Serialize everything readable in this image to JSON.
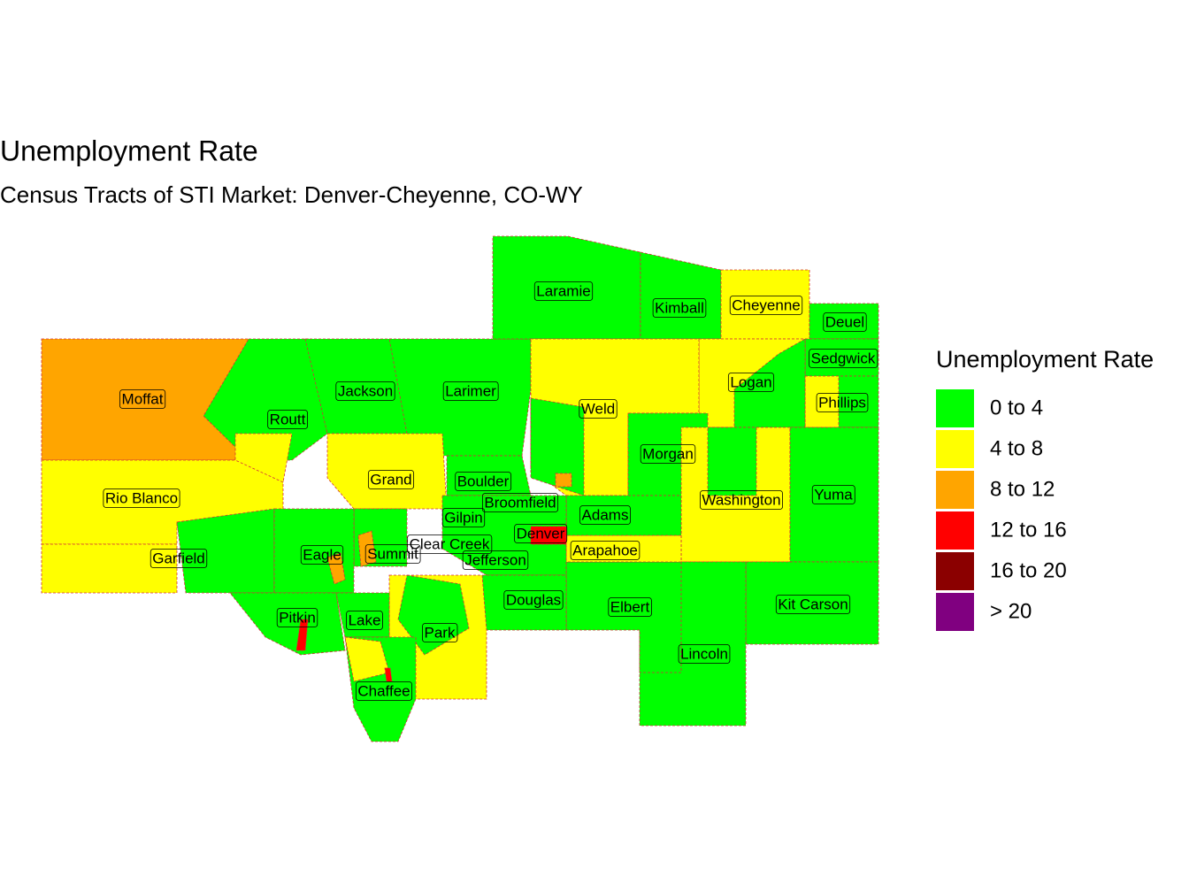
{
  "title": "Unemployment Rate",
  "subtitle": "Census Tracts of STI Market: Denver-Cheyenne, CO-WY",
  "legend": {
    "title": "Unemployment Rate",
    "items": [
      {
        "label": "0 to 4",
        "color": "#00ff00"
      },
      {
        "label": "4 to 8",
        "color": "#ffff00"
      },
      {
        "label": "8 to 12",
        "color": "#ffa500"
      },
      {
        "label": "12 to 16",
        "color": "#ff0000"
      },
      {
        "label": "16 to 20",
        "color": "#8b0000"
      },
      {
        "label": "> 20",
        "color": "#800080"
      }
    ]
  },
  "counties": [
    "Laramie",
    "Kimball",
    "Cheyenne",
    "Deuel",
    "Sedgwick",
    "Moffat",
    "Jackson",
    "Larimer",
    "Logan",
    "Phillips",
    "Weld",
    "Routt",
    "Morgan",
    "Grand",
    "Boulder",
    "Rio Blanco",
    "Yuma",
    "Washington",
    "Broomfield",
    "Adams",
    "Gilpin",
    "Denver",
    "Clear Creek",
    "Eagle",
    "Summit",
    "Garfield",
    "Arapahoe",
    "Jefferson",
    "Douglas",
    "Kit Carson",
    "Elbert",
    "Pitkin",
    "Lake",
    "Park",
    "Lincoln",
    "Chaffee"
  ]
}
